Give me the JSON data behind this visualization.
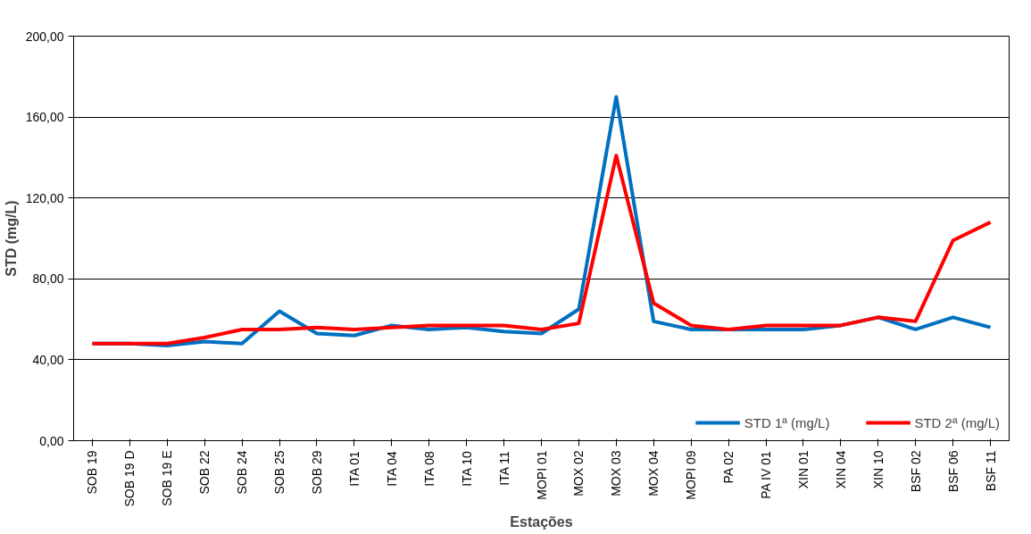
{
  "chart_data": {
    "type": "line",
    "xlabel": "Estações",
    "ylabel": "STD (mg/L)",
    "categories": [
      "SOB 19",
      "SOB 19 D",
      "SOB 19 E",
      "SOB 22",
      "SOB 24",
      "SOB 25",
      "SOB 29",
      "ITA 01",
      "ITA 04",
      "ITA 08",
      "ITA 10",
      "ITA 11",
      "MOPI 01",
      "MOX 02",
      "MOX 03",
      "MOX 04",
      "MOPI 09",
      "PA 02",
      "PA IV 01",
      "XIN 01",
      "XIN 04",
      "XIN 10",
      "BSF 02",
      "BSF 06",
      "BSF 11"
    ],
    "series": [
      {
        "name": "STD 1ª (mg/L)",
        "color": "#0070c0",
        "values": [
          48,
          48,
          47,
          49,
          48,
          64,
          53,
          52,
          57,
          55,
          56,
          54,
          53,
          65,
          170,
          59,
          55,
          55,
          55,
          55,
          57,
          61,
          55,
          61,
          56
        ]
      },
      {
        "name": "STD 2ª (mg/L)",
        "color": "#ff0000",
        "values": [
          48,
          48,
          48,
          51,
          55,
          55,
          56,
          55,
          56,
          57,
          57,
          57,
          55,
          58,
          141,
          68,
          57,
          55,
          57,
          57,
          57,
          61,
          59,
          99,
          108
        ]
      }
    ],
    "ylim": [
      0,
      200
    ],
    "yticks": [
      {
        "value": 0,
        "label": "0,00"
      },
      {
        "value": 40,
        "label": "40,00"
      },
      {
        "value": 80,
        "label": "80,00"
      },
      {
        "value": 120,
        "label": "120,00"
      },
      {
        "value": 160,
        "label": "160,00"
      },
      {
        "value": 200,
        "label": "200,00"
      }
    ],
    "grid": "y",
    "legend": "bottom right",
    "marker": "none",
    "line_style": "solid"
  }
}
